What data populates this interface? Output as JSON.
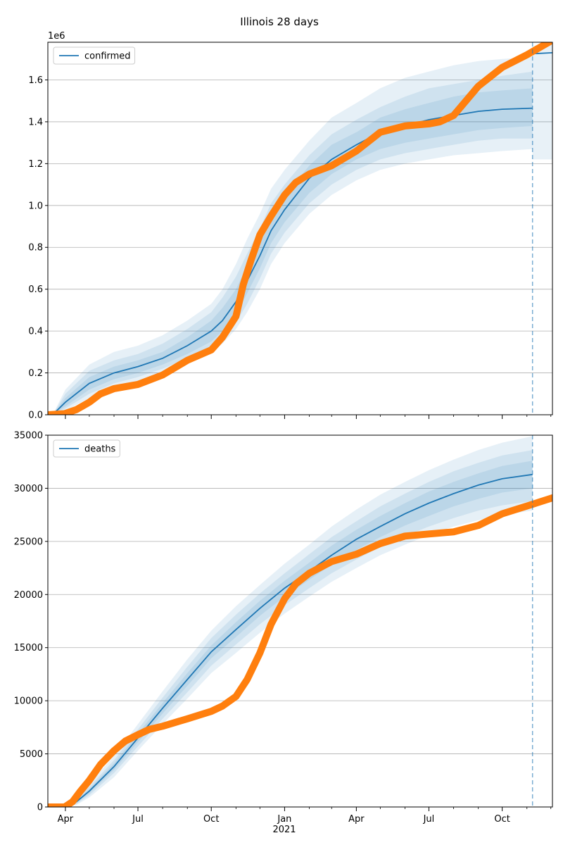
{
  "chart_data": {
    "type": "line",
    "title": "Illinois 28 days",
    "x_tick_labels": [
      "Apr",
      "Jul",
      "Oct",
      "Jan",
      "Apr",
      "Jul",
      "Oct"
    ],
    "x_year_label": "2021",
    "x_range": [
      "2020-03-10",
      "2021-12-03"
    ],
    "forecast_start": "2021-11-08",
    "band_colors": [
      "#1f77b4"
    ],
    "panels": [
      {
        "legend": "confirmed",
        "legend_placement": "upper left",
        "offset_label": "1e6",
        "ylim": [
          0,
          1.78
        ],
        "y_ticks": [
          0,
          0.2,
          0.4,
          0.6,
          0.8,
          1.0,
          1.2,
          1.4,
          1.6
        ],
        "y_tick_labels": [
          "0.0",
          "0.2",
          "0.4",
          "0.6",
          "0.8",
          "1.0",
          "1.2",
          "1.4",
          "1.6"
        ],
        "grid": "y",
        "model": {
          "x": [
            "2020-03-10",
            "2020-03-16",
            "2020-04-01",
            "2020-05-01",
            "2020-06-01",
            "2020-07-01",
            "2020-08-01",
            "2020-09-01",
            "2020-10-01",
            "2020-10-15",
            "2020-11-01",
            "2020-11-15",
            "2020-12-01",
            "2020-12-15",
            "2021-01-01",
            "2021-02-01",
            "2021-03-01",
            "2021-04-01",
            "2021-05-01",
            "2021-06-01",
            "2021-07-01",
            "2021-08-01",
            "2021-09-01",
            "2021-10-01",
            "2021-11-08"
          ],
          "y": [
            0,
            0,
            0.06,
            0.15,
            0.2,
            0.23,
            0.27,
            0.33,
            0.4,
            0.45,
            0.54,
            0.64,
            0.76,
            0.88,
            0.98,
            1.13,
            1.22,
            1.29,
            1.35,
            1.38,
            1.41,
            1.43,
            1.45,
            1.46,
            1.465
          ],
          "bands": [
            {
              "lower": [
                0,
                0,
                0.04,
                0.12,
                0.17,
                0.2,
                0.24,
                0.29,
                0.35,
                0.4,
                0.48,
                0.58,
                0.7,
                0.82,
                0.92,
                1.06,
                1.15,
                1.22,
                1.27,
                1.3,
                1.32,
                1.34,
                1.36,
                1.37,
                1.38
              ],
              "upper": [
                0,
                0,
                0.08,
                0.18,
                0.23,
                0.26,
                0.3,
                0.37,
                0.45,
                0.51,
                0.6,
                0.71,
                0.83,
                0.95,
                1.05,
                1.19,
                1.29,
                1.35,
                1.42,
                1.46,
                1.49,
                1.52,
                1.54,
                1.55,
                1.56
              ]
            },
            {
              "lower": [
                0,
                0,
                0.03,
                0.1,
                0.15,
                0.18,
                0.22,
                0.27,
                0.32,
                0.37,
                0.44,
                0.53,
                0.65,
                0.77,
                0.87,
                1.01,
                1.1,
                1.17,
                1.22,
                1.25,
                1.27,
                1.29,
                1.31,
                1.32,
                1.32
              ],
              "upper": [
                0,
                0,
                0.1,
                0.21,
                0.26,
                0.29,
                0.34,
                0.41,
                0.49,
                0.56,
                0.66,
                0.77,
                0.89,
                1.01,
                1.1,
                1.24,
                1.34,
                1.41,
                1.47,
                1.52,
                1.56,
                1.58,
                1.6,
                1.62,
                1.64
              ]
            },
            {
              "lower": [
                0,
                0,
                0.02,
                0.08,
                0.13,
                0.16,
                0.2,
                0.25,
                0.3,
                0.34,
                0.41,
                0.49,
                0.6,
                0.72,
                0.82,
                0.96,
                1.05,
                1.12,
                1.17,
                1.2,
                1.22,
                1.24,
                1.25,
                1.26,
                1.27
              ],
              "upper": [
                0,
                0,
                0.12,
                0.24,
                0.3,
                0.33,
                0.38,
                0.45,
                0.53,
                0.6,
                0.72,
                0.84,
                0.96,
                1.08,
                1.17,
                1.31,
                1.42,
                1.49,
                1.56,
                1.61,
                1.64,
                1.67,
                1.69,
                1.7,
                1.71
              ]
            }
          ]
        },
        "extended": {
          "x": [
            "2021-11-08",
            "2021-12-03"
          ],
          "y": [
            1.725,
            1.73
          ]
        },
        "outer_extended": {
          "x": [
            "2021-11-08",
            "2021-12-03"
          ],
          "upper": [
            1.76,
            1.78
          ],
          "lower": [
            1.22,
            1.22
          ]
        },
        "observed": {
          "x": [
            "2020-03-10",
            "2020-03-31",
            "2020-04-15",
            "2020-05-01",
            "2020-05-15",
            "2020-06-01",
            "2020-07-01",
            "2020-08-01",
            "2020-09-01",
            "2020-10-01",
            "2020-10-15",
            "2020-11-01",
            "2020-11-10",
            "2020-11-20",
            "2020-12-01",
            "2020-12-15",
            "2021-01-01",
            "2021-01-15",
            "2021-02-01",
            "2021-03-01",
            "2021-04-01",
            "2021-05-01",
            "2021-06-01",
            "2021-07-01",
            "2021-07-15",
            "2021-08-01",
            "2021-09-01",
            "2021-10-01",
            "2021-11-01",
            "2021-12-03"
          ],
          "y": [
            0,
            0.005,
            0.025,
            0.06,
            0.1,
            0.125,
            0.145,
            0.19,
            0.26,
            0.31,
            0.37,
            0.47,
            0.62,
            0.74,
            0.86,
            0.95,
            1.05,
            1.11,
            1.15,
            1.19,
            1.26,
            1.35,
            1.38,
            1.39,
            1.4,
            1.43,
            1.57,
            1.66,
            1.72,
            1.79
          ]
        }
      },
      {
        "legend": "deaths",
        "legend_placement": "upper left",
        "offset_label": "",
        "ylim": [
          0,
          35000
        ],
        "y_ticks": [
          0,
          5000,
          10000,
          15000,
          20000,
          25000,
          30000,
          35000
        ],
        "y_tick_labels": [
          "0",
          "5000",
          "10000",
          "15000",
          "20000",
          "25000",
          "30000",
          "35000"
        ],
        "grid": "y",
        "model": {
          "x": [
            "2020-03-10",
            "2020-03-31",
            "2020-04-15",
            "2020-05-01",
            "2020-06-01",
            "2020-07-01",
            "2020-08-01",
            "2020-09-01",
            "2020-10-01",
            "2020-11-01",
            "2020-12-01",
            "2021-01-01",
            "2021-02-01",
            "2021-03-01",
            "2021-04-01",
            "2021-05-01",
            "2021-06-01",
            "2021-07-01",
            "2021-08-01",
            "2021-09-01",
            "2021-10-01",
            "2021-11-08"
          ],
          "y": [
            0,
            0,
            500,
            1500,
            3800,
            6500,
            9300,
            12000,
            14600,
            16700,
            18700,
            20600,
            22200,
            23700,
            25200,
            26400,
            27600,
            28600,
            29500,
            30300,
            30900,
            31300
          ],
          "bands": [
            {
              "lower": [
                0,
                0,
                400,
                1300,
                3500,
                6100,
                8800,
                11400,
                14000,
                16000,
                18000,
                19800,
                21400,
                22800,
                24200,
                25400,
                26500,
                27400,
                28300,
                29000,
                29600,
                30000
              ],
              "upper": [
                0,
                0,
                600,
                1700,
                4100,
                6900,
                9800,
                12600,
                15200,
                17400,
                19400,
                21300,
                23000,
                24600,
                26100,
                27400,
                28600,
                29700,
                30600,
                31400,
                32100,
                32600
              ]
            },
            {
              "lower": [
                0,
                0,
                300,
                1100,
                3200,
                5700,
                8300,
                10800,
                13300,
                15300,
                17200,
                19000,
                20600,
                22000,
                23300,
                24500,
                25500,
                26400,
                27200,
                27900,
                28400,
                28800
              ],
              "upper": [
                0,
                0,
                700,
                1900,
                4400,
                7300,
                10300,
                13200,
                15900,
                18100,
                20100,
                22000,
                23800,
                25400,
                26900,
                28300,
                29500,
                30600,
                31600,
                32400,
                33100,
                33600
              ]
            },
            {
              "lower": [
                0,
                0,
                200,
                900,
                2800,
                5300,
                7800,
                10200,
                12600,
                14500,
                16400,
                18200,
                19800,
                21200,
                22500,
                23700,
                24700,
                25600,
                26400,
                27000,
                27500,
                27900
              ],
              "upper": [
                0,
                0,
                900,
                2200,
                4800,
                7800,
                10900,
                13900,
                16600,
                18900,
                20900,
                22900,
                24700,
                26400,
                28000,
                29400,
                30600,
                31700,
                32700,
                33600,
                34300,
                34900
              ]
            }
          ]
        },
        "extended": {
          "x": [],
          "y": []
        },
        "outer_extended": {
          "x": [],
          "upper": [],
          "lower": []
        },
        "observed": {
          "x": [
            "2020-03-10",
            "2020-03-31",
            "2020-04-10",
            "2020-04-20",
            "2020-05-01",
            "2020-05-15",
            "2020-06-01",
            "2020-06-15",
            "2020-07-01",
            "2020-07-15",
            "2020-08-01",
            "2020-09-01",
            "2020-10-01",
            "2020-10-15",
            "2020-11-01",
            "2020-11-15",
            "2020-12-01",
            "2020-12-15",
            "2021-01-01",
            "2021-01-15",
            "2021-02-01",
            "2021-03-01",
            "2021-04-01",
            "2021-05-01",
            "2021-06-01",
            "2021-07-01",
            "2021-08-01",
            "2021-09-01",
            "2021-10-01",
            "2021-11-08",
            "2021-12-03"
          ],
          "y": [
            0,
            0,
            500,
            1500,
            2500,
            4000,
            5300,
            6200,
            6800,
            7300,
            7600,
            8300,
            9000,
            9500,
            10400,
            12000,
            14500,
            17200,
            19600,
            21000,
            22000,
            23100,
            23800,
            24800,
            25500,
            25700,
            25900,
            26500,
            27600,
            28500,
            29100
          ]
        }
      }
    ]
  }
}
